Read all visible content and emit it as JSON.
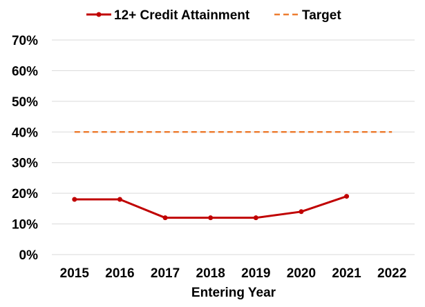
{
  "chart_data": {
    "type": "line",
    "title": "",
    "xlabel": "Entering Year",
    "ylabel": "",
    "categories": [
      "2015",
      "2016",
      "2017",
      "2018",
      "2019",
      "2020",
      "2021",
      "2022"
    ],
    "ylim": [
      0,
      70
    ],
    "yticks": [
      0,
      10,
      20,
      30,
      40,
      50,
      60,
      70
    ],
    "ytick_labels": [
      "0%",
      "10%",
      "20%",
      "30%",
      "40%",
      "50%",
      "60%",
      "70%"
    ],
    "grid": true,
    "legend_position": "top",
    "series": [
      {
        "name": "12+ Credit Attainment",
        "color": "#c00000",
        "style": "solid-with-markers",
        "values": [
          18,
          18,
          12,
          12,
          12,
          14,
          19,
          null
        ]
      },
      {
        "name": "Target",
        "color": "#ed7d31",
        "style": "dashed",
        "values": [
          40,
          40,
          40,
          40,
          40,
          40,
          40,
          40
        ]
      }
    ]
  }
}
